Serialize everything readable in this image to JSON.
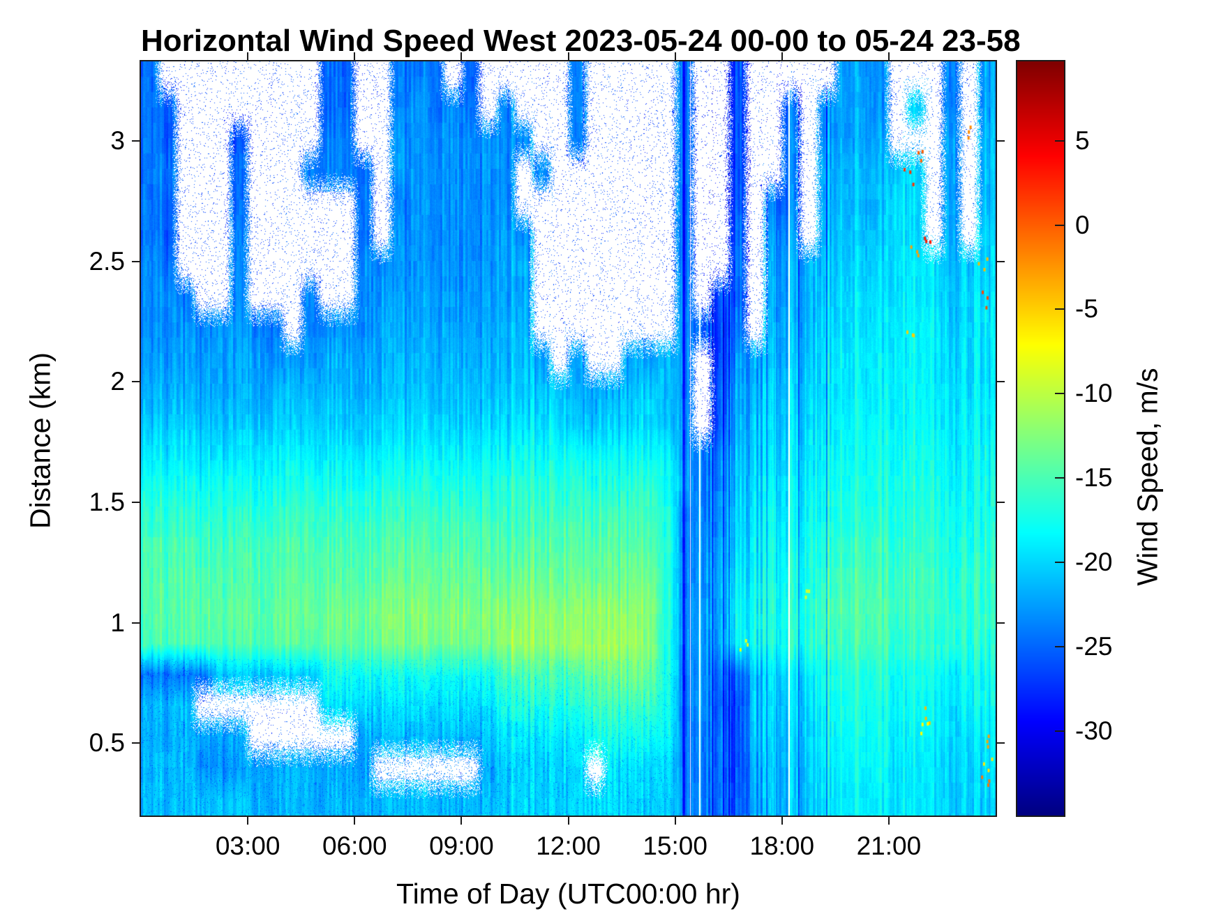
{
  "title": "Horizontal Wind Speed West 2023-05-24 00-00 to 05-24 23-58",
  "axes": {
    "x_label": "Time of Day (UTC00:00 hr)",
    "y_label": "Distance (km)",
    "x_ticks": [
      {
        "label": "03:00",
        "hour": 3
      },
      {
        "label": "06:00",
        "hour": 6
      },
      {
        "label": "09:00",
        "hour": 9
      },
      {
        "label": "12:00",
        "hour": 12
      },
      {
        "label": "15:00",
        "hour": 15
      },
      {
        "label": "18:00",
        "hour": 18
      },
      {
        "label": "21:00",
        "hour": 21
      }
    ],
    "y_ticks": [
      {
        "label": "3",
        "km": 3.0
      },
      {
        "label": "2.5",
        "km": 2.5
      },
      {
        "label": "2",
        "km": 2.0
      },
      {
        "label": "1.5",
        "km": 1.5
      },
      {
        "label": "1",
        "km": 1.0
      },
      {
        "label": "0.5",
        "km": 0.5
      }
    ],
    "x_range_hours": [
      0,
      24
    ],
    "y_range_km": [
      0.2,
      3.33
    ]
  },
  "colorbar": {
    "label": "Wind Speed, m/s",
    "ticks": [
      {
        "label": "5",
        "value": 5
      },
      {
        "label": "0",
        "value": 0
      },
      {
        "label": "-5",
        "value": -5
      },
      {
        "label": "-10",
        "value": -10
      },
      {
        "label": "-15",
        "value": -15
      },
      {
        "label": "-20",
        "value": -20
      },
      {
        "label": "-25",
        "value": -25
      },
      {
        "label": "-30",
        "value": -30
      }
    ],
    "range": [
      -35,
      9.7
    ],
    "colormap": "jet"
  },
  "chart_data": {
    "type": "heatmap",
    "title": "Horizontal Wind Speed West 2023-05-24 00-00 to 05-24 23-58",
    "xlabel": "Time of Day (UTC00:00 hr)",
    "ylabel": "Distance (km)",
    "units": "m/s",
    "value_range": [
      -35,
      9.7
    ],
    "n_cols": 48,
    "t0_hours": 0.25,
    "dt_hours": 0.5,
    "n_rows": 24,
    "h_top_km": 3.3,
    "h_bottom_km": 0.2,
    "missing_is_null": true,
    "values": [
      [
        -24,
        null,
        null,
        null,
        null,
        null,
        null,
        null,
        null,
        null,
        -25,
        -25,
        null,
        null,
        -24,
        -24,
        -24,
        null,
        -25,
        null,
        null,
        null,
        null,
        null,
        -24,
        null,
        null,
        null,
        null,
        null,
        -24,
        null,
        null,
        -26,
        null,
        null,
        null,
        null,
        null,
        -22,
        -22,
        -23,
        null,
        null,
        null,
        -24,
        null,
        -22
      ],
      [
        -24,
        -25,
        null,
        null,
        null,
        null,
        null,
        null,
        null,
        null,
        -25,
        -25,
        null,
        null,
        -24,
        -23,
        -24,
        -23,
        -24,
        null,
        -23,
        null,
        null,
        null,
        -24,
        null,
        null,
        null,
        null,
        null,
        -24,
        null,
        null,
        -26,
        null,
        null,
        -25,
        null,
        -22,
        -22,
        -22,
        -23,
        null,
        -20,
        null,
        -24,
        null,
        -22
      ],
      [
        -24,
        -25,
        null,
        null,
        null,
        -26,
        null,
        null,
        null,
        null,
        -24,
        -24,
        null,
        null,
        -23,
        -23,
        -23,
        -23,
        -23,
        -23,
        -23,
        -23,
        null,
        null,
        -24,
        null,
        null,
        null,
        null,
        null,
        -24,
        null,
        null,
        -26,
        null,
        null,
        -24,
        null,
        -22,
        -22,
        -22,
        -22,
        null,
        null,
        null,
        -23,
        null,
        -21
      ],
      [
        -24,
        -24,
        null,
        null,
        null,
        -25,
        null,
        null,
        null,
        -24,
        -24,
        -24,
        -24,
        null,
        -23,
        -23,
        -23,
        -23,
        -23,
        -23,
        -23,
        null,
        -23,
        null,
        null,
        null,
        null,
        null,
        null,
        null,
        -24,
        null,
        null,
        -26,
        null,
        null,
        -24,
        null,
        -21,
        -21,
        -21,
        -21,
        -20,
        -20,
        null,
        -23,
        null,
        -21
      ],
      [
        -24,
        -25,
        null,
        null,
        null,
        -25,
        null,
        null,
        null,
        null,
        null,
        null,
        -24,
        null,
        -24,
        -23,
        -23,
        -23,
        -23,
        -23,
        -23,
        null,
        null,
        null,
        null,
        null,
        null,
        null,
        null,
        null,
        -24,
        null,
        null,
        -26,
        null,
        -24,
        -24,
        null,
        -21,
        -21,
        -21,
        -21,
        -19,
        -20,
        null,
        -23,
        null,
        -21
      ],
      [
        -24,
        -25,
        null,
        null,
        null,
        -24,
        null,
        null,
        null,
        null,
        null,
        null,
        -24,
        null,
        -23,
        -23,
        -23,
        -23,
        -23,
        -23,
        -22,
        -23,
        null,
        null,
        null,
        null,
        null,
        null,
        null,
        null,
        -24,
        null,
        null,
        -25,
        null,
        -23,
        -23,
        null,
        -20.5,
        -20.5,
        -20.5,
        -20.5,
        -19,
        -20,
        null,
        -22,
        null,
        -20
      ],
      [
        -23,
        -24,
        null,
        null,
        null,
        -24,
        null,
        null,
        null,
        null,
        null,
        null,
        -23,
        -23,
        -23,
        -23,
        -23,
        -23,
        -23,
        -23,
        -22,
        -22,
        null,
        null,
        null,
        null,
        null,
        null,
        null,
        null,
        -24,
        null,
        null,
        -25,
        null,
        -22,
        -22,
        -22,
        -20,
        -20,
        -20,
        -20,
        -19,
        -19,
        -19,
        -22,
        -20,
        -20
      ],
      [
        -23,
        -23,
        -24,
        null,
        null,
        -23.5,
        null,
        null,
        null,
        -24,
        null,
        null,
        -23,
        -22.5,
        -22.5,
        -22.5,
        -22.5,
        -22.5,
        -22.5,
        -22.5,
        -22,
        -22,
        null,
        null,
        null,
        null,
        null,
        null,
        null,
        null,
        -23.5,
        null,
        -25,
        -25,
        null,
        -22,
        -22,
        -22,
        -19.5,
        -19.5,
        -19.5,
        -19.5,
        -19,
        -19,
        -19,
        -21.5,
        -19.5,
        -19.5
      ],
      [
        -23,
        -23,
        -23,
        -23.5,
        -23,
        -23,
        -23.5,
        -24,
        null,
        -24,
        -23,
        -23,
        -23,
        -22,
        -22,
        -22,
        -22,
        -22,
        -22,
        -22,
        -21.5,
        -21.5,
        null,
        null,
        null,
        null,
        null,
        null,
        null,
        null,
        -23,
        -24,
        -26,
        -24,
        null,
        -21.5,
        -21.5,
        -21.5,
        -19,
        -19,
        -19,
        -19,
        -18.5,
        -18.5,
        -18.5,
        -21,
        -19,
        -19
      ],
      [
        -22.5,
        -22.5,
        -22.5,
        -22.5,
        -22.5,
        -22.5,
        -22.5,
        -23,
        -23,
        -23,
        -22,
        -22,
        -22,
        -21.5,
        -21.5,
        -21.5,
        -21.5,
        -21.5,
        -21.5,
        -21.5,
        -21,
        -21,
        -22,
        null,
        -22.5,
        null,
        null,
        -22,
        -22,
        -21,
        -23,
        null,
        -26,
        -23,
        -22,
        -21,
        -21,
        -21,
        -18.5,
        -18.5,
        -18.5,
        -18.5,
        -18.5,
        -18.5,
        -18.5,
        -20.5,
        -19,
        -19
      ],
      [
        -21.5,
        -21.5,
        -21.5,
        -22,
        -22,
        -22,
        -22,
        -21.5,
        -21.5,
        -21.5,
        -21.5,
        -21.5,
        -21.5,
        -21,
        -21,
        -21,
        -21,
        -21,
        -21,
        -21,
        -20.5,
        -20.5,
        -20.5,
        -20.5,
        -22,
        -22,
        -22,
        -21,
        -20,
        -21,
        -23,
        null,
        -25,
        -22,
        -21.5,
        -20.5,
        -20.5,
        -20.5,
        -18.5,
        -18.5,
        -18.5,
        -18.5,
        -18.5,
        -18.5,
        -18.5,
        -20,
        -19,
        -19
      ],
      [
        -20.5,
        -20.5,
        -20.5,
        -21,
        -21,
        -21,
        -21,
        -20.5,
        -20.5,
        -20.5,
        -20.5,
        -20.5,
        -20.5,
        -20,
        -20,
        -20,
        -20,
        -20,
        -20,
        -20,
        -19.5,
        -19.5,
        -19.5,
        -19.5,
        -21,
        -21,
        -20.5,
        -20,
        -19.5,
        -20.5,
        -22.5,
        null,
        -25,
        -21.5,
        -21,
        -20,
        -20,
        -20,
        -18,
        -18,
        -18,
        -18,
        -18,
        -18,
        -18,
        -20,
        -18.5,
        -18.5
      ],
      [
        -19,
        -19,
        -19,
        -19.5,
        -19.5,
        -19.5,
        -19.5,
        -19,
        -19,
        -19,
        -19,
        -19,
        -19,
        -18.5,
        -18.5,
        -18.5,
        -18.5,
        -18.5,
        -18.5,
        -18.5,
        -18,
        -18,
        -18,
        -18,
        -18,
        -18.5,
        -18.5,
        -18,
        -18,
        -18.5,
        -22.5,
        -23,
        -23,
        -21,
        -20.5,
        -19.5,
        -19.5,
        -19.5,
        -17.5,
        -17.5,
        -17.5,
        -17.5,
        -17.5,
        -17.5,
        -17.5,
        -19.5,
        -18,
        -18
      ],
      [
        -17.5,
        -17.5,
        -17.5,
        -18,
        -18,
        -18,
        -18,
        -17.5,
        -17.5,
        -17.5,
        -17.5,
        -17.5,
        -17.5,
        -17,
        -17,
        -17,
        -17,
        -17,
        -17,
        -17,
        -16.5,
        -16.5,
        -16.5,
        -16.5,
        -16.5,
        -17,
        -17,
        -16.5,
        -16,
        -17.5,
        -22,
        -23,
        -23,
        -20.5,
        -20,
        -19,
        -19,
        -19,
        -17,
        -17,
        -17,
        -17,
        -17,
        -17,
        -17,
        -19,
        -17.5,
        -17.5
      ],
      [
        -16,
        -16,
        -16,
        -16.5,
        -16.5,
        -16.5,
        -16.5,
        -16,
        -16,
        -16,
        -16,
        -16,
        -16,
        -15.5,
        -15.5,
        -15.5,
        -15.5,
        -15.5,
        -15.5,
        -15.5,
        -15.5,
        -15.5,
        -15.5,
        -15.5,
        -15.5,
        -15.5,
        -15.5,
        -15.5,
        -15,
        -17,
        -23.5,
        -22.5,
        -22.5,
        -20,
        -19.5,
        -18.5,
        -18.5,
        -18.5,
        -16.5,
        -16.5,
        -16.5,
        -16.5,
        -16.5,
        -16.5,
        -16.5,
        -18.5,
        -17,
        -17
      ],
      [
        -15,
        -15,
        -15,
        -15.5,
        -15.5,
        -15.5,
        -15.5,
        -15,
        -15,
        -15,
        -15,
        -15,
        -15,
        -14.5,
        -14.5,
        -14.5,
        -14.5,
        -14.5,
        -14.5,
        -14.5,
        -14.5,
        -14.5,
        -14.5,
        -14.5,
        -14.5,
        -14.5,
        -14.5,
        -14.5,
        -14,
        -16.5,
        -23.5,
        -22,
        -22,
        -19.5,
        -19,
        -18,
        -18,
        -18,
        -15.5,
        -15.5,
        -15.5,
        -15.5,
        -16,
        -16,
        -16,
        -18,
        -16.5,
        -16.5
      ],
      [
        -14.5,
        -14.5,
        -14.5,
        -15,
        -15,
        -15,
        -15,
        -14.5,
        -14.5,
        -14.5,
        -14.5,
        -14.5,
        -14.5,
        -13.5,
        -13.5,
        -13.5,
        -13.5,
        -13.5,
        -13.5,
        -13.5,
        -13.5,
        -13.5,
        -13.5,
        -13.5,
        -13.5,
        -13.5,
        -13.5,
        -13.5,
        -13,
        -16.5,
        -23,
        -22,
        -21.5,
        -19,
        -18.5,
        -17.5,
        -17.5,
        -17.5,
        -15,
        -15,
        -15,
        -15,
        -15.5,
        -15.5,
        -15.5,
        -17.5,
        -16,
        -16
      ],
      [
        -14.5,
        -14.5,
        -14.5,
        -14.5,
        -14.5,
        -14.5,
        -14.5,
        -14,
        -14,
        -14,
        -13.5,
        -13.5,
        -13.5,
        -12.5,
        -12.5,
        -12.5,
        -12.5,
        -12.5,
        -12.5,
        -12.5,
        -12,
        -12,
        -12,
        -12,
        -12,
        -12,
        -12,
        -12,
        -12,
        -16.5,
        -23,
        -21.5,
        -21.5,
        -18.5,
        -18,
        -17,
        -17,
        -17,
        -14.5,
        -14.5,
        -14.5,
        -14.5,
        -15.5,
        -15.5,
        -15.5,
        -17,
        -16,
        -16
      ],
      [
        -15,
        -15,
        -15,
        -15,
        -15,
        -15,
        -15,
        -14.5,
        -14.5,
        -14.5,
        -14,
        -14,
        -14,
        -13,
        -13,
        -13,
        -13,
        -13,
        -13,
        -13,
        -11.5,
        -11.5,
        -11.5,
        -11.5,
        -11.5,
        -11.5,
        -11.5,
        -11.5,
        -12,
        -17,
        -23,
        -21.5,
        -21.5,
        -18.5,
        -18,
        -17,
        -17,
        -17,
        -15,
        -15,
        -15,
        -15,
        -16,
        -16,
        -16,
        -17,
        -16.5,
        -16.5
      ],
      [
        -24,
        -24,
        -24,
        -24,
        -20.5,
        -20.5,
        -20.5,
        -20.5,
        -20.5,
        -20.5,
        -17.5,
        -17.5,
        -17.5,
        -17.5,
        -17.5,
        -17.5,
        -17.5,
        -17.5,
        -17.5,
        -17.5,
        -15,
        -15,
        -15,
        -15,
        -15,
        -13.5,
        -13.5,
        -13.5,
        -13.5,
        -17,
        -23.5,
        -22,
        -24,
        -25,
        -21,
        -19.5,
        -19.5,
        -19.5,
        -16.5,
        -16.5,
        -16.5,
        -16.5,
        -17.5,
        -17.5,
        -17.5,
        -19.5,
        -17.5,
        -17.5
      ],
      [
        -21,
        -21,
        -21,
        null,
        null,
        null,
        null,
        null,
        null,
        null,
        -19.5,
        -19.5,
        -19.5,
        -19.5,
        -19.5,
        -19.5,
        -19.5,
        -19.5,
        -19.5,
        -19.5,
        -17,
        -17,
        -17,
        -17,
        -17,
        -15.5,
        -15.5,
        -15.5,
        -15.5,
        -17.5,
        -23.5,
        -22,
        -25,
        -26,
        -21,
        -20,
        -20,
        -20,
        -17,
        -17,
        -17,
        -17,
        -18,
        -18,
        -18,
        -20,
        -18,
        -18
      ],
      [
        -21.5,
        -21.5,
        -21.5,
        -22,
        -22,
        -22,
        null,
        null,
        null,
        null,
        null,
        null,
        -22,
        -21,
        -21,
        -21,
        -21,
        -21,
        -21,
        -21,
        -19,
        -19,
        -19,
        -19,
        -19,
        -17.5,
        -17.5,
        -17.5,
        -17.5,
        -18,
        -23.5,
        -22.5,
        -24,
        -26,
        -21,
        -20.5,
        -20.5,
        -20.5,
        -17.5,
        -17.5,
        -17.5,
        -17.5,
        -18.5,
        -18.5,
        -18.5,
        -20.5,
        -19,
        -19
      ],
      [
        -21,
        -21,
        -21,
        -23,
        -23,
        -23,
        -22,
        -22,
        -22,
        -22,
        -22,
        -22,
        -22,
        null,
        null,
        null,
        null,
        null,
        null,
        -22,
        -20,
        -20,
        -20,
        -20,
        -20,
        null,
        -19.5,
        -19.5,
        -19.5,
        -19.5,
        -23.5,
        -23,
        -24,
        -26,
        -22,
        -21,
        -21,
        -21,
        -18,
        -18,
        -18,
        -18,
        -19,
        -19,
        -19,
        -21,
        -19.5,
        -19.5
      ],
      [
        -21,
        -21,
        -21,
        -21,
        -21,
        -21,
        -21.5,
        -21.5,
        -21.5,
        -21.5,
        -21.5,
        -21.5,
        -21.5,
        -21,
        -21,
        -21,
        -21,
        -21,
        -21,
        -21,
        -20,
        -20,
        -20,
        -20,
        -20,
        -20,
        -20,
        -20,
        -20,
        -20,
        -23,
        -23,
        -24,
        -25.5,
        -22,
        -21,
        -21,
        -21,
        -18.5,
        -18.5,
        -18.5,
        -18.5,
        -19,
        -19,
        -19,
        -21,
        -20,
        -20
      ]
    ],
    "warm_speckles": [
      {
        "t": 21.55,
        "km": 2.85,
        "v": 2
      },
      {
        "t": 21.7,
        "km": 2.55,
        "v": -3
      },
      {
        "t": 21.9,
        "km": 2.95,
        "v": 0
      },
      {
        "t": 22.05,
        "km": 2.6,
        "v": 3
      },
      {
        "t": 21.6,
        "km": 2.2,
        "v": -5
      },
      {
        "t": 22.1,
        "km": 0.62,
        "v": -4
      },
      {
        "t": 21.95,
        "km": 0.55,
        "v": -7
      },
      {
        "t": 23.7,
        "km": 0.52,
        "v": -3
      },
      {
        "t": 23.75,
        "km": 0.42,
        "v": -6
      },
      {
        "t": 23.72,
        "km": 0.33,
        "v": -1
      },
      {
        "t": 23.6,
        "km": 2.5,
        "v": -4
      },
      {
        "t": 23.65,
        "km": 2.35,
        "v": 1
      },
      {
        "t": 23.3,
        "km": 3.05,
        "v": -2
      },
      {
        "t": 16.9,
        "km": 0.9,
        "v": -8
      },
      {
        "t": 18.6,
        "km": 1.15,
        "v": -9
      }
    ]
  }
}
